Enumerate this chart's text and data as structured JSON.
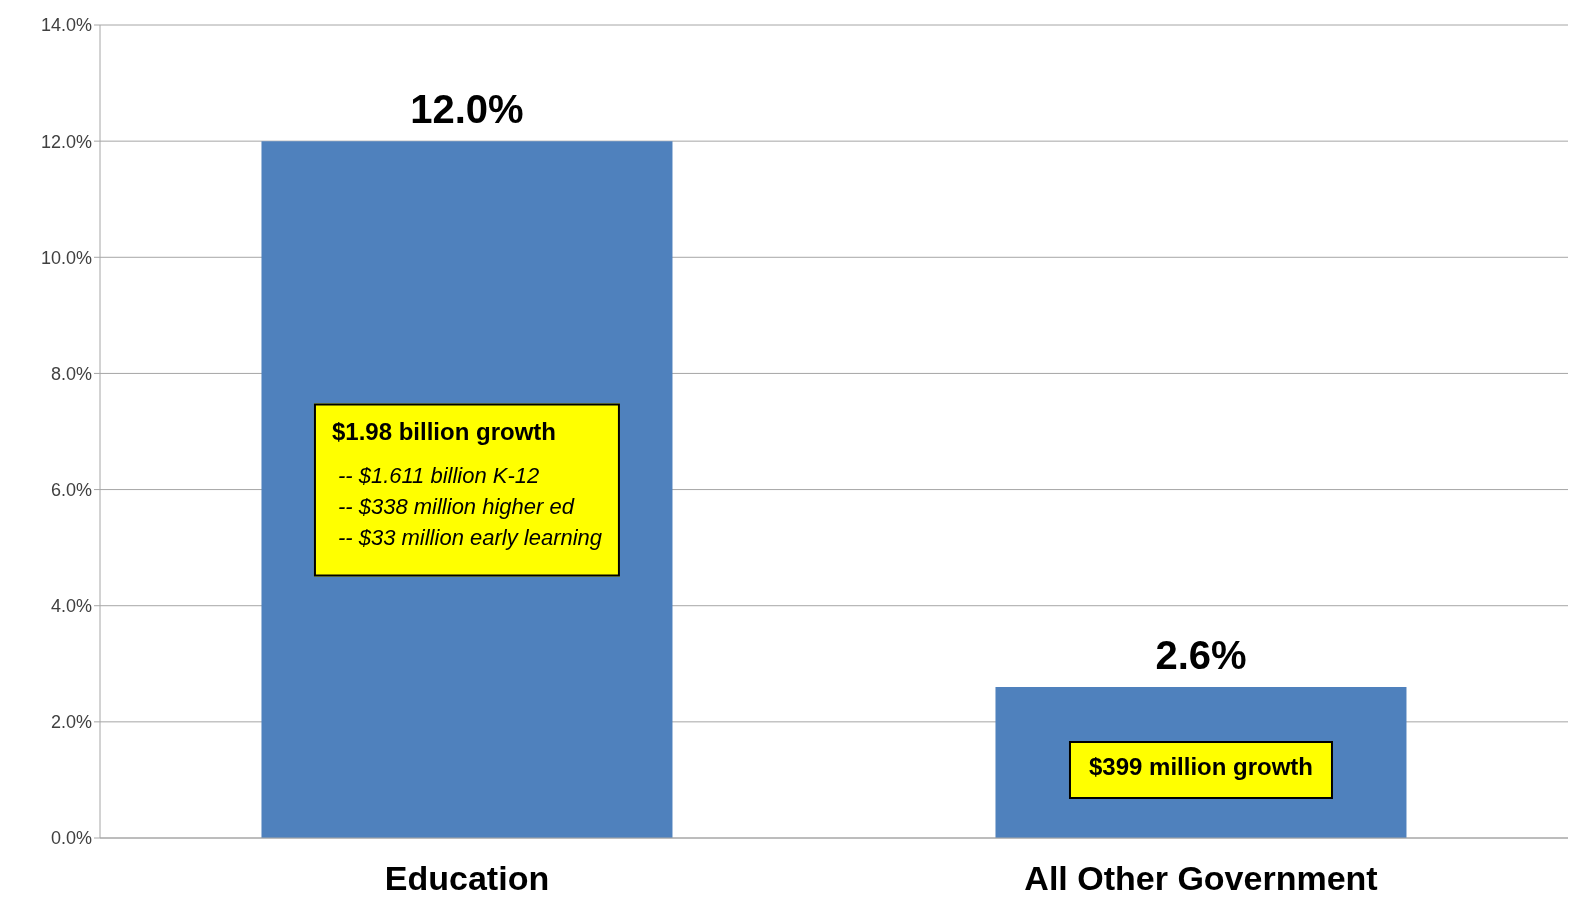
{
  "chart_data": {
    "type": "bar",
    "categories": [
      "Education",
      "All Other Government"
    ],
    "values": [
      12.0,
      2.6
    ],
    "color": "#4f81bd",
    "value_labels": [
      "12.0%",
      "2.6%"
    ],
    "ylim": [
      0,
      14
    ],
    "yticks": [
      {
        "value": 0,
        "label": "0.0%"
      },
      {
        "value": 2,
        "label": "2.0%"
      },
      {
        "value": 4,
        "label": "4.0%"
      },
      {
        "value": 6,
        "label": "6.0%"
      },
      {
        "value": 8,
        "label": "8.0%"
      },
      {
        "value": 10,
        "label": "10.0%"
      },
      {
        "value": 12,
        "label": "12.0%"
      },
      {
        "value": 14,
        "label": "14.0%"
      }
    ],
    "grid": "y",
    "legend": false,
    "annotations": [
      "$1.98 billion growth\n\n-- $1.611 billion K-12\n-- $338 million higher ed\n-- $33 million early learning",
      "$399 million growth"
    ]
  }
}
